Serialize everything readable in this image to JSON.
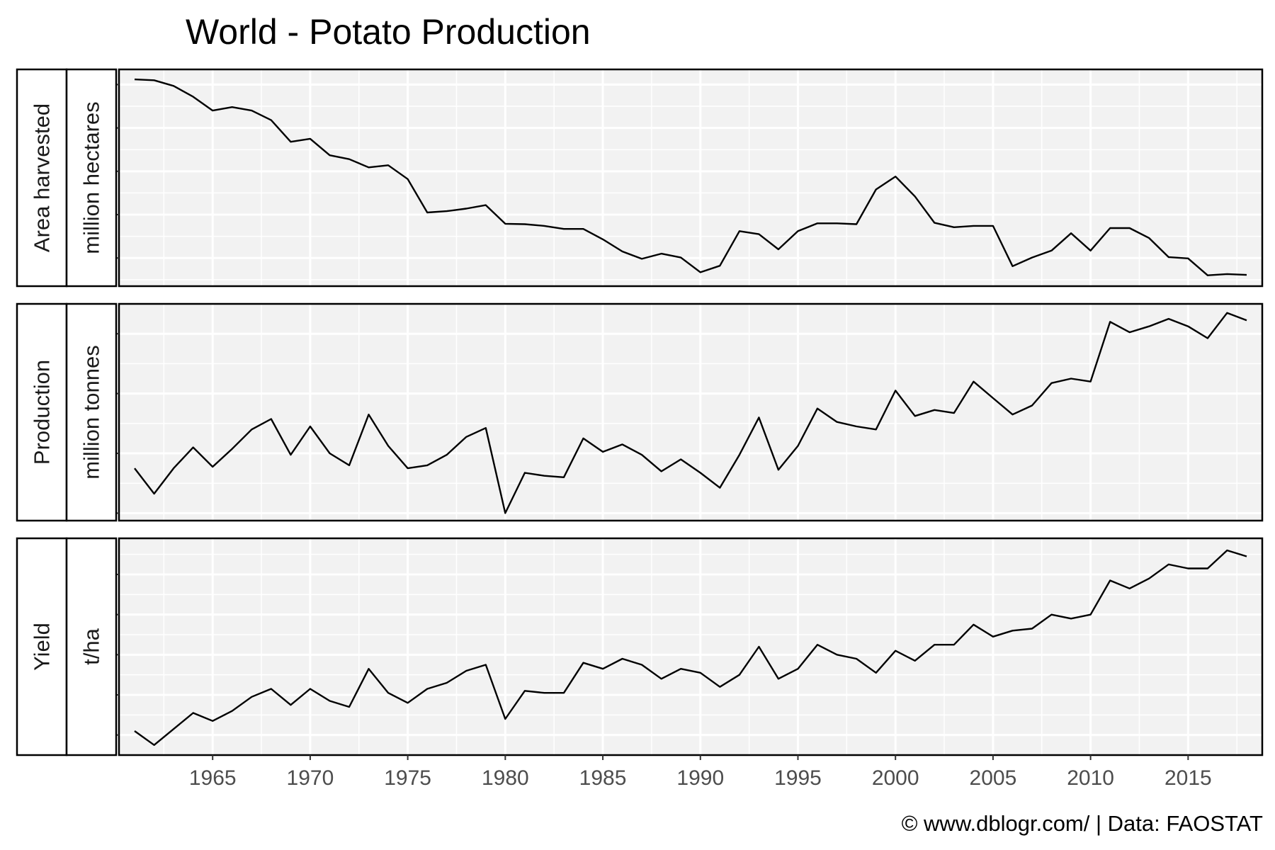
{
  "chart_data": {
    "type": "line",
    "title": "World - Potato Production",
    "caption": "© www.dblogr.com/  |  Data: FAOSTAT",
    "x": [
      1961,
      1962,
      1963,
      1964,
      1965,
      1966,
      1967,
      1968,
      1969,
      1970,
      1971,
      1972,
      1973,
      1974,
      1975,
      1976,
      1977,
      1978,
      1979,
      1980,
      1981,
      1982,
      1983,
      1984,
      1985,
      1986,
      1987,
      1988,
      1989,
      1990,
      1991,
      1992,
      1993,
      1994,
      1995,
      1996,
      1997,
      1998,
      1999,
      2000,
      2001,
      2002,
      2003,
      2004,
      2005,
      2006,
      2007,
      2008,
      2009,
      2010,
      2011,
      2012,
      2013,
      2014,
      2015,
      2016,
      2017,
      2018
    ],
    "x_ticks": [
      1965,
      1970,
      1975,
      1980,
      1985,
      1990,
      1995,
      2000,
      2005,
      2010,
      2015
    ],
    "xlim": [
      1960.2,
      2018.8
    ],
    "grid": true,
    "panels": [
      {
        "label": "Area harvested",
        "unit": "million hectares",
        "ylim": [
          17.35,
          22.35
        ],
        "y_ticks": [
          18,
          19,
          20,
          21,
          22
        ],
        "values": [
          22.12,
          22.1,
          21.97,
          21.72,
          21.4,
          21.48,
          21.4,
          21.18,
          20.68,
          20.75,
          20.37,
          20.28,
          20.09,
          20.14,
          19.82,
          19.05,
          19.08,
          19.14,
          19.22,
          18.79,
          18.78,
          18.74,
          18.67,
          18.67,
          18.43,
          18.15,
          17.98,
          18.1,
          18.01,
          17.67,
          17.82,
          18.62,
          18.55,
          18.2,
          18.62,
          18.8,
          18.8,
          18.78,
          19.58,
          19.88,
          19.42,
          18.81,
          18.71,
          18.74,
          18.74,
          17.81,
          18.01,
          18.17,
          18.57,
          18.17,
          18.69,
          18.69,
          18.46,
          18.02,
          17.99,
          17.6,
          17.63,
          17.61
        ]
      },
      {
        "label": "Production",
        "unit": "million tonnes",
        "ylim": [
          235,
          380
        ],
        "y_ticks": [
          240,
          280,
          320,
          360
        ],
        "values": [
          270,
          253,
          270,
          284,
          271,
          283,
          296,
          303,
          279,
          298,
          280,
          272,
          306,
          285,
          270,
          272,
          279,
          291,
          297,
          240,
          267,
          265,
          264,
          290,
          281,
          286,
          279,
          268,
          276,
          267,
          257,
          279,
          304,
          269,
          285,
          310,
          301,
          298,
          296,
          322,
          305,
          309,
          307,
          328,
          317,
          306,
          312,
          327,
          330,
          328,
          368,
          361,
          365,
          370,
          365,
          357,
          374,
          369
        ]
      },
      {
        "label": "Yield",
        "unit": "t/ha",
        "ylim": [
          11.0,
          21.8
        ],
        "y_ticks": [
          12,
          14,
          16,
          18,
          20
        ],
        "values": [
          12.2,
          11.5,
          12.3,
          13.1,
          12.7,
          13.2,
          13.9,
          14.3,
          13.5,
          14.3,
          13.7,
          13.4,
          15.3,
          14.1,
          13.6,
          14.3,
          14.6,
          15.2,
          15.5,
          12.8,
          14.2,
          14.1,
          14.1,
          15.6,
          15.3,
          15.8,
          15.5,
          14.8,
          15.3,
          15.1,
          14.4,
          15.0,
          16.4,
          14.8,
          15.3,
          16.5,
          16.0,
          15.8,
          15.1,
          16.2,
          15.7,
          16.5,
          16.5,
          17.5,
          16.9,
          17.2,
          17.3,
          18.0,
          17.8,
          18.0,
          19.7,
          19.3,
          19.8,
          20.5,
          20.3,
          20.3,
          21.2,
          20.9
        ]
      }
    ]
  }
}
